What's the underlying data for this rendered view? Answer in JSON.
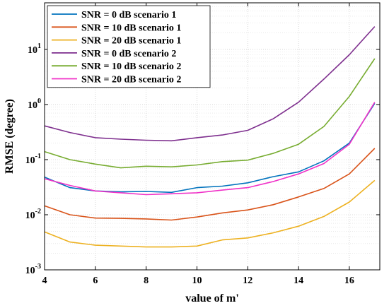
{
  "chart_data": {
    "type": "line",
    "xlabel": "value of m'",
    "ylabel": "RMSE (degree)",
    "xlim": [
      4,
      17.2
    ],
    "ylim": [
      0.001,
      70
    ],
    "yscale": "log",
    "x_ticks": [
      4,
      6,
      8,
      10,
      12,
      14,
      16
    ],
    "y_ticks": [
      {
        "value": 0.001,
        "base": "10",
        "exp": "-3"
      },
      {
        "value": 0.01,
        "base": "10",
        "exp": "-2"
      },
      {
        "value": 0.1,
        "base": "10",
        "exp": "-1"
      },
      {
        "value": 1,
        "base": "10",
        "exp": "0"
      },
      {
        "value": 10,
        "base": "10",
        "exp": "1"
      }
    ],
    "grid": true,
    "legend_position": "top-left",
    "x": [
      4,
      5,
      6,
      7,
      8,
      9,
      10,
      11,
      12,
      13,
      14,
      15,
      16,
      17
    ],
    "series": [
      {
        "name": "SNR = 0 dB scenario 1",
        "color": "#0072BD",
        "values": [
          0.048,
          0.031,
          0.027,
          0.026,
          0.0265,
          0.0255,
          0.031,
          0.033,
          0.038,
          0.049,
          0.06,
          0.095,
          0.2,
          1.05
        ]
      },
      {
        "name": "SNR = 10 dB scenario 1",
        "color": "#D95319",
        "values": [
          0.0145,
          0.01,
          0.0087,
          0.0086,
          0.0084,
          0.008,
          0.0091,
          0.0108,
          0.0122,
          0.0152,
          0.021,
          0.03,
          0.055,
          0.16
        ]
      },
      {
        "name": "SNR = 20 dB scenario 1",
        "color": "#EDB120",
        "values": [
          0.0049,
          0.0032,
          0.0028,
          0.0027,
          0.0026,
          0.0026,
          0.0027,
          0.0035,
          0.0038,
          0.0047,
          0.0062,
          0.0093,
          0.017,
          0.042
        ]
      },
      {
        "name": "SNR = 0 dB scenario 2",
        "color": "#7E2F8E",
        "values": [
          0.41,
          0.31,
          0.25,
          0.235,
          0.225,
          0.22,
          0.25,
          0.28,
          0.34,
          0.55,
          1.1,
          2.9,
          8.0,
          26
        ]
      },
      {
        "name": "SNR = 10 dB scenario 2",
        "color": "#77AC30",
        "values": [
          0.14,
          0.1,
          0.083,
          0.071,
          0.076,
          0.074,
          0.08,
          0.092,
          0.098,
          0.13,
          0.19,
          0.4,
          1.4,
          6.8
        ]
      },
      {
        "name": "SNR = 20 dB scenario 2",
        "color": "#F032C8",
        "values": [
          0.045,
          0.034,
          0.027,
          0.025,
          0.0232,
          0.024,
          0.025,
          0.028,
          0.031,
          0.04,
          0.055,
          0.085,
          0.19,
          1.1
        ]
      }
    ]
  }
}
